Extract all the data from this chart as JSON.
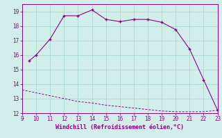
{
  "xlabel": "Windchill (Refroidissement éolien,°C)",
  "bg_color": "#d2eeea",
  "line1_x": [
    9.5,
    10,
    11,
    12,
    13,
    14,
    15,
    16,
    17,
    18,
    19,
    20,
    21,
    22,
    23
  ],
  "line1_y": [
    15.6,
    16.0,
    17.1,
    18.7,
    18.7,
    19.1,
    18.45,
    18.3,
    18.45,
    18.45,
    18.25,
    17.75,
    16.4,
    14.3,
    12.2
  ],
  "line2_x": [
    9,
    10,
    11,
    12,
    13,
    14,
    15,
    16,
    17,
    18,
    19,
    20,
    21,
    22,
    23
  ],
  "line2_y": [
    13.6,
    13.4,
    13.2,
    13.0,
    12.8,
    12.7,
    12.55,
    12.45,
    12.35,
    12.25,
    12.15,
    12.1,
    12.1,
    12.1,
    12.2
  ],
  "line_color": "#880088",
  "xlim": [
    9,
    23
  ],
  "ylim": [
    12,
    19.5
  ],
  "xticks": [
    9,
    10,
    11,
    12,
    13,
    14,
    15,
    16,
    17,
    18,
    19,
    20,
    21,
    22,
    23
  ],
  "yticks": [
    12,
    13,
    14,
    15,
    16,
    17,
    18,
    19
  ],
  "grid_color": "#aad8d2",
  "tick_color": "#880088",
  "label_color": "#880088",
  "marker": "+"
}
